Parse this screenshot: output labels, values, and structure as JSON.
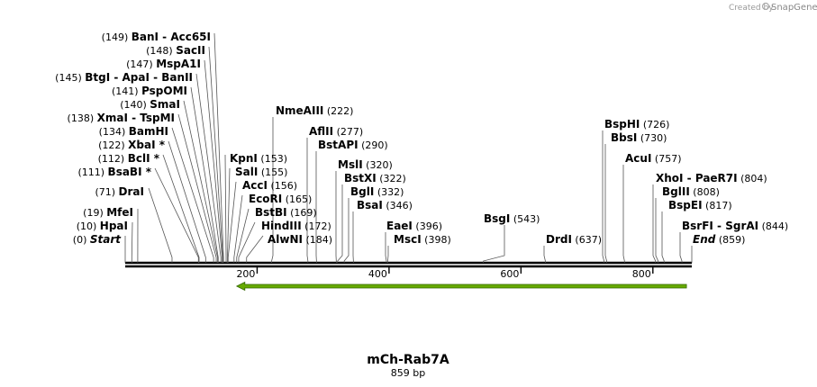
{
  "credit": {
    "created_by": "Created by",
    "brand": "SnapGene"
  },
  "map": {
    "name": "mCh-Rab7A",
    "length_label": "859 bp",
    "length_bp": 859,
    "feature": {
      "start": 180,
      "end": 855,
      "direction": "reverse",
      "color": "#66aa00"
    },
    "ticks": [
      "200",
      "400",
      "600",
      "800"
    ],
    "tick_values": [
      200,
      400,
      600,
      800
    ]
  },
  "sites": [
    {
      "pos": "(0)",
      "name": "Start",
      "bp": 0,
      "italic": true
    },
    {
      "pos": "(10)",
      "name": "HpaI",
      "bp": 10
    },
    {
      "pos": "(19)",
      "name": "MfeI",
      "bp": 19
    },
    {
      "pos": "(71)",
      "name": "DraI",
      "bp": 71
    },
    {
      "pos": "(111)",
      "name": "BsaBI *",
      "bp": 111
    },
    {
      "pos": "(112)",
      "name": "BclI *",
      "bp": 112
    },
    {
      "pos": "(122)",
      "name": "XbaI *",
      "bp": 122
    },
    {
      "pos": "(134)",
      "name": "BamHI",
      "bp": 134
    },
    {
      "pos": "(138)",
      "name": "XmaI  - TspMI",
      "bp": 138
    },
    {
      "pos": "(140)",
      "name": "SmaI",
      "bp": 140
    },
    {
      "pos": "(141)",
      "name": "PspOMI",
      "bp": 141
    },
    {
      "pos": "(145)",
      "name": "BtgI  - ApaI  - BanII",
      "bp": 145
    },
    {
      "pos": "(147)",
      "name": "MspA1I",
      "bp": 147
    },
    {
      "pos": "(148)",
      "name": "SacII",
      "bp": 148
    },
    {
      "pos": "(149)",
      "name": "BanI  - Acc65I",
      "bp": 149
    },
    {
      "name": "KpnI",
      "pos": "(153)",
      "bp": 153
    },
    {
      "name": "SalI",
      "pos": "(155)",
      "bp": 155
    },
    {
      "name": "AccI",
      "pos": "(156)",
      "bp": 156
    },
    {
      "name": "EcoRI",
      "pos": "(165)",
      "bp": 165
    },
    {
      "name": "BstBI",
      "pos": "(169)",
      "bp": 169
    },
    {
      "name": "HindIII",
      "pos": "(172)",
      "bp": 172
    },
    {
      "name": "AlwNI",
      "pos": "(184)",
      "bp": 184
    },
    {
      "name": "NmeAIII",
      "pos": "(222)",
      "bp": 222
    },
    {
      "name": "AflII",
      "pos": "(277)",
      "bp": 277
    },
    {
      "name": "BstAPI",
      "pos": "(290)",
      "bp": 290
    },
    {
      "name": "MslI",
      "pos": "(320)",
      "bp": 320
    },
    {
      "name": "BstXI",
      "pos": "(322)",
      "bp": 322
    },
    {
      "name": "BglI",
      "pos": "(332)",
      "bp": 332
    },
    {
      "name": "BsaI",
      "pos": "(346)",
      "bp": 346
    },
    {
      "name": "EaeI",
      "pos": "(396)",
      "bp": 396
    },
    {
      "name": "MscI",
      "pos": "(398)",
      "bp": 398
    },
    {
      "name": "BsgI",
      "pos": "(543)",
      "bp": 543
    },
    {
      "name": "DrdI",
      "pos": "(637)",
      "bp": 637
    },
    {
      "name": "BspHI",
      "pos": "(726)",
      "bp": 726
    },
    {
      "name": "BbsI",
      "pos": "(730)",
      "bp": 730
    },
    {
      "name": "AcuI",
      "pos": "(757)",
      "bp": 757
    },
    {
      "name": "XhoI  - PaeR7I",
      "pos": "(804)",
      "bp": 804
    },
    {
      "name": "BglII",
      "pos": "(808)",
      "bp": 808
    },
    {
      "name": "BspEI",
      "pos": "(817)",
      "bp": 817
    },
    {
      "name": "BsrFI  - SgrAI",
      "pos": "(844)",
      "bp": 844
    },
    {
      "name": "End",
      "pos": "(859)",
      "bp": 859,
      "italic": true
    }
  ]
}
